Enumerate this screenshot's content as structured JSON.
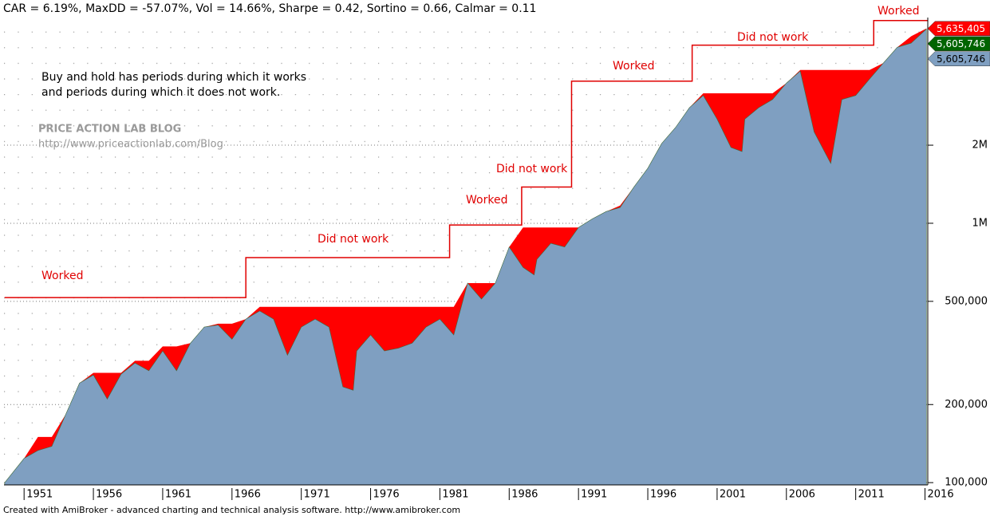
{
  "chart_data": {
    "type": "area",
    "title": "CAR = 6.19%, MaxDD = -57.07%, Vol = 14.66%, Sharpe = 0.42, Sortino = 0.66, Calmar = 0.11",
    "footer": "Created with AmiBroker - advanced charting and technical analysis software. http://www.amibroker.com",
    "note": [
      "Buy and hold has periods during which it works",
      "and periods during which it does not work."
    ],
    "watermark": [
      "PRICE ACTION LAB BLOG",
      "http://www.priceactionlab.com/Blog"
    ],
    "annotations": [
      "Worked",
      "Did not work",
      "Worked",
      "Did not work",
      "Worked",
      "Did not work",
      "Worked"
    ],
    "log_scale": true,
    "grid": true,
    "xlim": [
      1949.55,
      2016.2
    ],
    "xticks": [
      1951,
      1956,
      1961,
      1966,
      1971,
      1976,
      1981,
      1986,
      1991,
      1996,
      2001,
      2006,
      2011,
      2016
    ],
    "ylim": [
      98000,
      6300000
    ],
    "yticks": [
      {
        "value": 100000,
        "label": "100,000"
      },
      {
        "value": 200000,
        "label": "200,000"
      },
      {
        "value": 500000,
        "label": "500,000"
      },
      {
        "value": 1000000,
        "label": "1M"
      },
      {
        "value": 2000000,
        "label": "2M"
      }
    ],
    "x": [
      1949.6,
      1951,
      1952,
      1953,
      1954,
      1955,
      1956,
      1957,
      1958,
      1959,
      1960,
      1961,
      1962,
      1963,
      1964,
      1965,
      1966,
      1967,
      1968,
      1969,
      1970,
      1971,
      1972,
      1973,
      1974,
      1974.75,
      1975,
      1976,
      1977,
      1978,
      1979,
      1980,
      1981,
      1982,
      1983,
      1984,
      1985,
      1986,
      1987,
      1987.8,
      1988,
      1989,
      1990,
      1991,
      1992,
      1993,
      1994,
      1995,
      1996,
      1997,
      1998,
      1999,
      2000,
      2001,
      2002,
      2002.8,
      2003,
      2004,
      2005,
      2006,
      2007,
      2008,
      2009.2,
      2010,
      2011,
      2012,
      2013,
      2014,
      2015,
      2016.1
    ],
    "series": [
      {
        "color": "#7f9fc1",
        "values": [
          100000,
          124000,
          133000,
          138000,
          183000,
          242000,
          260000,
          210000,
          262000,
          289000,
          270000,
          322000,
          270000,
          345000,
          398000,
          405000,
          357000,
          427000,
          459000,
          427000,
          310000,
          398000,
          427000,
          398000,
          234000,
          227000,
          322000,
          371000,
          322000,
          330000,
          345000,
          398000,
          427000,
          371000,
          588000,
          510000,
          588000,
          810000,
          676000,
          632000,
          726000,
          837000,
          810000,
          963000,
          1040000,
          1110000,
          1150000,
          1380000,
          1630000,
          2030000,
          2340000,
          2790000,
          3110000,
          2520000,
          1960000,
          1890000,
          2520000,
          2790000,
          3000000,
          3470000,
          3860000,
          2250000,
          1700000,
          3000000,
          3110000,
          3600000,
          4150000,
          4770000,
          4950000,
          5605746
        ]
      },
      {
        "color": "#ff0000",
        "values": [
          100000,
          124000,
          150000,
          150000,
          183000,
          242000,
          265000,
          265000,
          265000,
          295000,
          295000,
          335000,
          335000,
          345000,
          398000,
          410000,
          410000,
          427000,
          476000,
          476000,
          476000,
          476000,
          476000,
          476000,
          476000,
          476000,
          476000,
          476000,
          476000,
          476000,
          476000,
          476000,
          476000,
          476000,
          588000,
          588000,
          588000,
          810000,
          963000,
          963000,
          963000,
          963000,
          963000,
          963000,
          1040000,
          1110000,
          1170000,
          1380000,
          1630000,
          2030000,
          2340000,
          2790000,
          3170000,
          3170000,
          3170000,
          3170000,
          3170000,
          3170000,
          3170000,
          3470000,
          3900000,
          3900000,
          3900000,
          3900000,
          3900000,
          3900000,
          4150000,
          4770000,
          5260000,
          5635405
        ]
      },
      {
        "color": "#e00000",
        "x": [
          1949.6,
          1967,
          1967,
          1981.7,
          1981.7,
          1986.9,
          1986.9,
          1990.5,
          1990.5,
          1999.2,
          1999.2,
          2012.3,
          2012.3,
          2016.2
        ],
        "values": [
          517000,
          517000,
          737000,
          737000,
          985000,
          985000,
          1380000,
          1380000,
          3530000,
          3530000,
          4860000,
          4860000,
          6050000,
          6050000
        ]
      }
    ],
    "price_tags": [
      {
        "value": 5635405,
        "label": "5,635,405",
        "color": "#ff0000"
      },
      {
        "value": 5605746,
        "label": "5,605,746",
        "color": "#006400"
      },
      {
        "value": 5605746,
        "label": "5,605,746",
        "color": "#7f9fc1"
      }
    ]
  }
}
